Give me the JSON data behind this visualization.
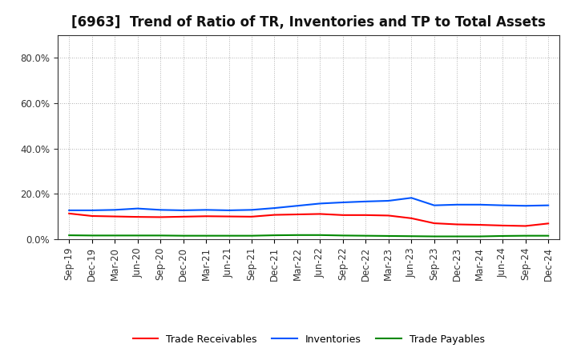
{
  "title": "[6963]  Trend of Ratio of TR, Inventories and TP to Total Assets",
  "x_labels": [
    "Sep-19",
    "Dec-19",
    "Mar-20",
    "Jun-20",
    "Sep-20",
    "Dec-20",
    "Mar-21",
    "Jun-21",
    "Sep-21",
    "Dec-21",
    "Mar-22",
    "Jun-22",
    "Sep-22",
    "Dec-22",
    "Mar-23",
    "Jun-23",
    "Sep-23",
    "Dec-23",
    "Mar-24",
    "Jun-24",
    "Sep-24",
    "Dec-24"
  ],
  "trade_receivables": [
    0.114,
    0.103,
    0.101,
    0.099,
    0.098,
    0.1,
    0.102,
    0.101,
    0.1,
    0.108,
    0.11,
    0.112,
    0.107,
    0.107,
    0.105,
    0.093,
    0.071,
    0.066,
    0.064,
    0.061,
    0.059,
    0.07
  ],
  "inventories": [
    0.128,
    0.128,
    0.13,
    0.136,
    0.13,
    0.128,
    0.13,
    0.128,
    0.13,
    0.138,
    0.148,
    0.158,
    0.163,
    0.167,
    0.17,
    0.183,
    0.15,
    0.153,
    0.153,
    0.15,
    0.148,
    0.15
  ],
  "trade_payables": [
    0.018,
    0.017,
    0.017,
    0.017,
    0.017,
    0.016,
    0.016,
    0.016,
    0.016,
    0.018,
    0.019,
    0.019,
    0.017,
    0.016,
    0.015,
    0.014,
    0.013,
    0.013,
    0.013,
    0.015,
    0.016,
    0.016
  ],
  "colors": {
    "trade_receivables": "#ff0000",
    "inventories": "#0055ff",
    "trade_payables": "#008800"
  },
  "ylim": [
    0.0,
    0.9
  ],
  "yticks": [
    0.0,
    0.2,
    0.4,
    0.6,
    0.8
  ],
  "legend_labels": [
    "Trade Receivables",
    "Inventories",
    "Trade Payables"
  ],
  "background_color": "#ffffff",
  "grid_color": "#999999",
  "title_fontsize": 12,
  "tick_fontsize": 8.5,
  "line_width": 1.5
}
